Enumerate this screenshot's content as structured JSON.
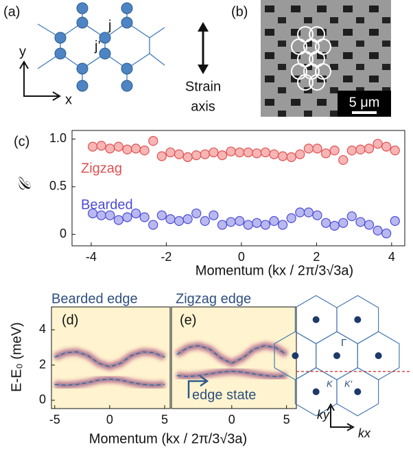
{
  "panels": {
    "a": "(a)",
    "b": "(b)",
    "c": "(c)",
    "j": "j",
    "jp": "j’",
    "x": "x",
    "y": "y",
    "strain": "Strain",
    "axis": "axis",
    "scalebar": "5 μm",
    "edge_state": "edge state",
    "gamma": "Γ",
    "K": "K",
    "Kp": "K′",
    "kx": "kx",
    "ky": "ky"
  },
  "chart_data": [
    {
      "type": "scatter",
      "panel": "(c)",
      "ylabel": "𝒞",
      "xlabel": "Momentum (kx / 2π/3√3a)",
      "xlim": [
        -4.51,
        4.35
      ],
      "ylim": [
        -0.12,
        1.09
      ],
      "xticks": [
        -4,
        -2,
        0,
        2,
        4
      ],
      "yticks": [
        0,
        0.5,
        {
          "value": 1,
          "label": "1.0"
        }
      ],
      "x": [
        -3.96,
        -3.73,
        -3.5,
        -3.27,
        -3.04,
        -2.81,
        -2.58,
        -2.35,
        -2.12,
        -1.89,
        -1.66,
        -1.43,
        -1.2,
        -0.97,
        -0.74,
        -0.51,
        -0.28,
        -0.05,
        0.18,
        0.41,
        0.64,
        0.87,
        1.1,
        1.33,
        1.56,
        1.79,
        2.02,
        2.25,
        2.48,
        2.71,
        2.94,
        3.17,
        3.4,
        3.63,
        3.86,
        4.09
      ],
      "series": [
        {
          "name": "Zigzag",
          "color": "#e05050",
          "fill": "#f7b5b5",
          "values": [
            0.92,
            0.93,
            0.9,
            0.92,
            0.89,
            0.9,
            0.88,
            0.98,
            0.82,
            0.86,
            0.84,
            0.81,
            0.83,
            0.84,
            0.86,
            0.83,
            0.87,
            0.86,
            0.86,
            0.85,
            0.86,
            0.84,
            0.82,
            0.81,
            0.84,
            0.9,
            0.9,
            0.85,
            0.88,
            0.78,
            0.88,
            0.89,
            0.9,
            0.95,
            0.92,
            0.88
          ],
          "errors": [
            0.05,
            0.05,
            0.05,
            0.05,
            0.05,
            0.05,
            0.05,
            0.05,
            0.05,
            0.05,
            0.05,
            0.05,
            0.05,
            0.05,
            0.05,
            0.05,
            0.05,
            0.05,
            0.05,
            0.05,
            0.05,
            0.05,
            0.05,
            0.05,
            0.05,
            0.05,
            0.05,
            0.05,
            0.05,
            0.05,
            0.05,
            0.05,
            0.05,
            0.05,
            0.05,
            0.05
          ]
        },
        {
          "name": "Bearded",
          "color": "#4b4bd6",
          "fill": "#b9b9f0",
          "values": [
            0.22,
            0.2,
            0.2,
            0.15,
            0.18,
            0.22,
            0.18,
            0.1,
            0.2,
            0.16,
            0.14,
            0.16,
            0.22,
            0.14,
            0.2,
            0.1,
            0.13,
            0.14,
            0.1,
            0.12,
            0.1,
            0.14,
            0.1,
            0.17,
            0.23,
            0.23,
            0.2,
            0.12,
            0.09,
            0.12,
            0.19,
            0.13,
            0.1,
            0.04,
            0.01,
            0.14
          ],
          "errors": [
            0.05,
            0.05,
            0.05,
            0.05,
            0.05,
            0.05,
            0.05,
            0.05,
            0.05,
            0.05,
            0.05,
            0.05,
            0.05,
            0.05,
            0.05,
            0.05,
            0.05,
            0.05,
            0.05,
            0.05,
            0.05,
            0.05,
            0.05,
            0.05,
            0.05,
            0.05,
            0.05,
            0.05,
            0.05,
            0.05,
            0.05,
            0.05,
            0.05,
            0.05,
            0.05,
            0.05
          ]
        }
      ]
    },
    {
      "type": "line",
      "panel": "(d)",
      "title": "Bearded edge",
      "ylabel": "E-E₀ (meV)",
      "xlabel": "Momentum (kx / 2π/3√3a)",
      "xlim": [
        -5.3,
        5.5
      ],
      "ylim": [
        -0.47,
        5.3
      ],
      "xticks": [
        -5,
        0,
        5
      ],
      "yticks": [
        0,
        2,
        4
      ],
      "x": [
        -5,
        -4,
        -3,
        -2,
        -1,
        0,
        1,
        2,
        3,
        4,
        5
      ],
      "series": [
        {
          "color": "#2a6ea0",
          "values": [
            2.45,
            2.7,
            2.75,
            2.55,
            2.1,
            1.9,
            2.1,
            2.55,
            2.75,
            2.7,
            2.45
          ]
        },
        {
          "color": "#2a6ea0",
          "values": [
            0.9,
            0.85,
            0.9,
            1.0,
            1.15,
            1.2,
            1.15,
            1.0,
            0.9,
            0.85,
            0.9
          ]
        }
      ]
    },
    {
      "type": "line",
      "panel": "(e)",
      "title": "Zigzag edge",
      "xlim": [
        -5.5,
        5.9
      ],
      "ylim": [
        -0.47,
        5.3
      ],
      "xticks": [
        0,
        5
      ],
      "x": [
        -5,
        -4,
        -3,
        -2,
        -1,
        0,
        1,
        2,
        3,
        4,
        5
      ],
      "series": [
        {
          "color": "#2a6ea0",
          "values": [
            2.6,
            3.0,
            3.1,
            2.9,
            2.4,
            2.1,
            2.4,
            2.9,
            3.1,
            3.0,
            2.6
          ]
        },
        {
          "color": "#2a6ea0",
          "values": [
            1.4,
            1.35,
            1.4,
            1.5,
            1.6,
            1.65,
            1.6,
            1.5,
            1.4,
            1.35,
            1.4
          ]
        }
      ]
    }
  ]
}
